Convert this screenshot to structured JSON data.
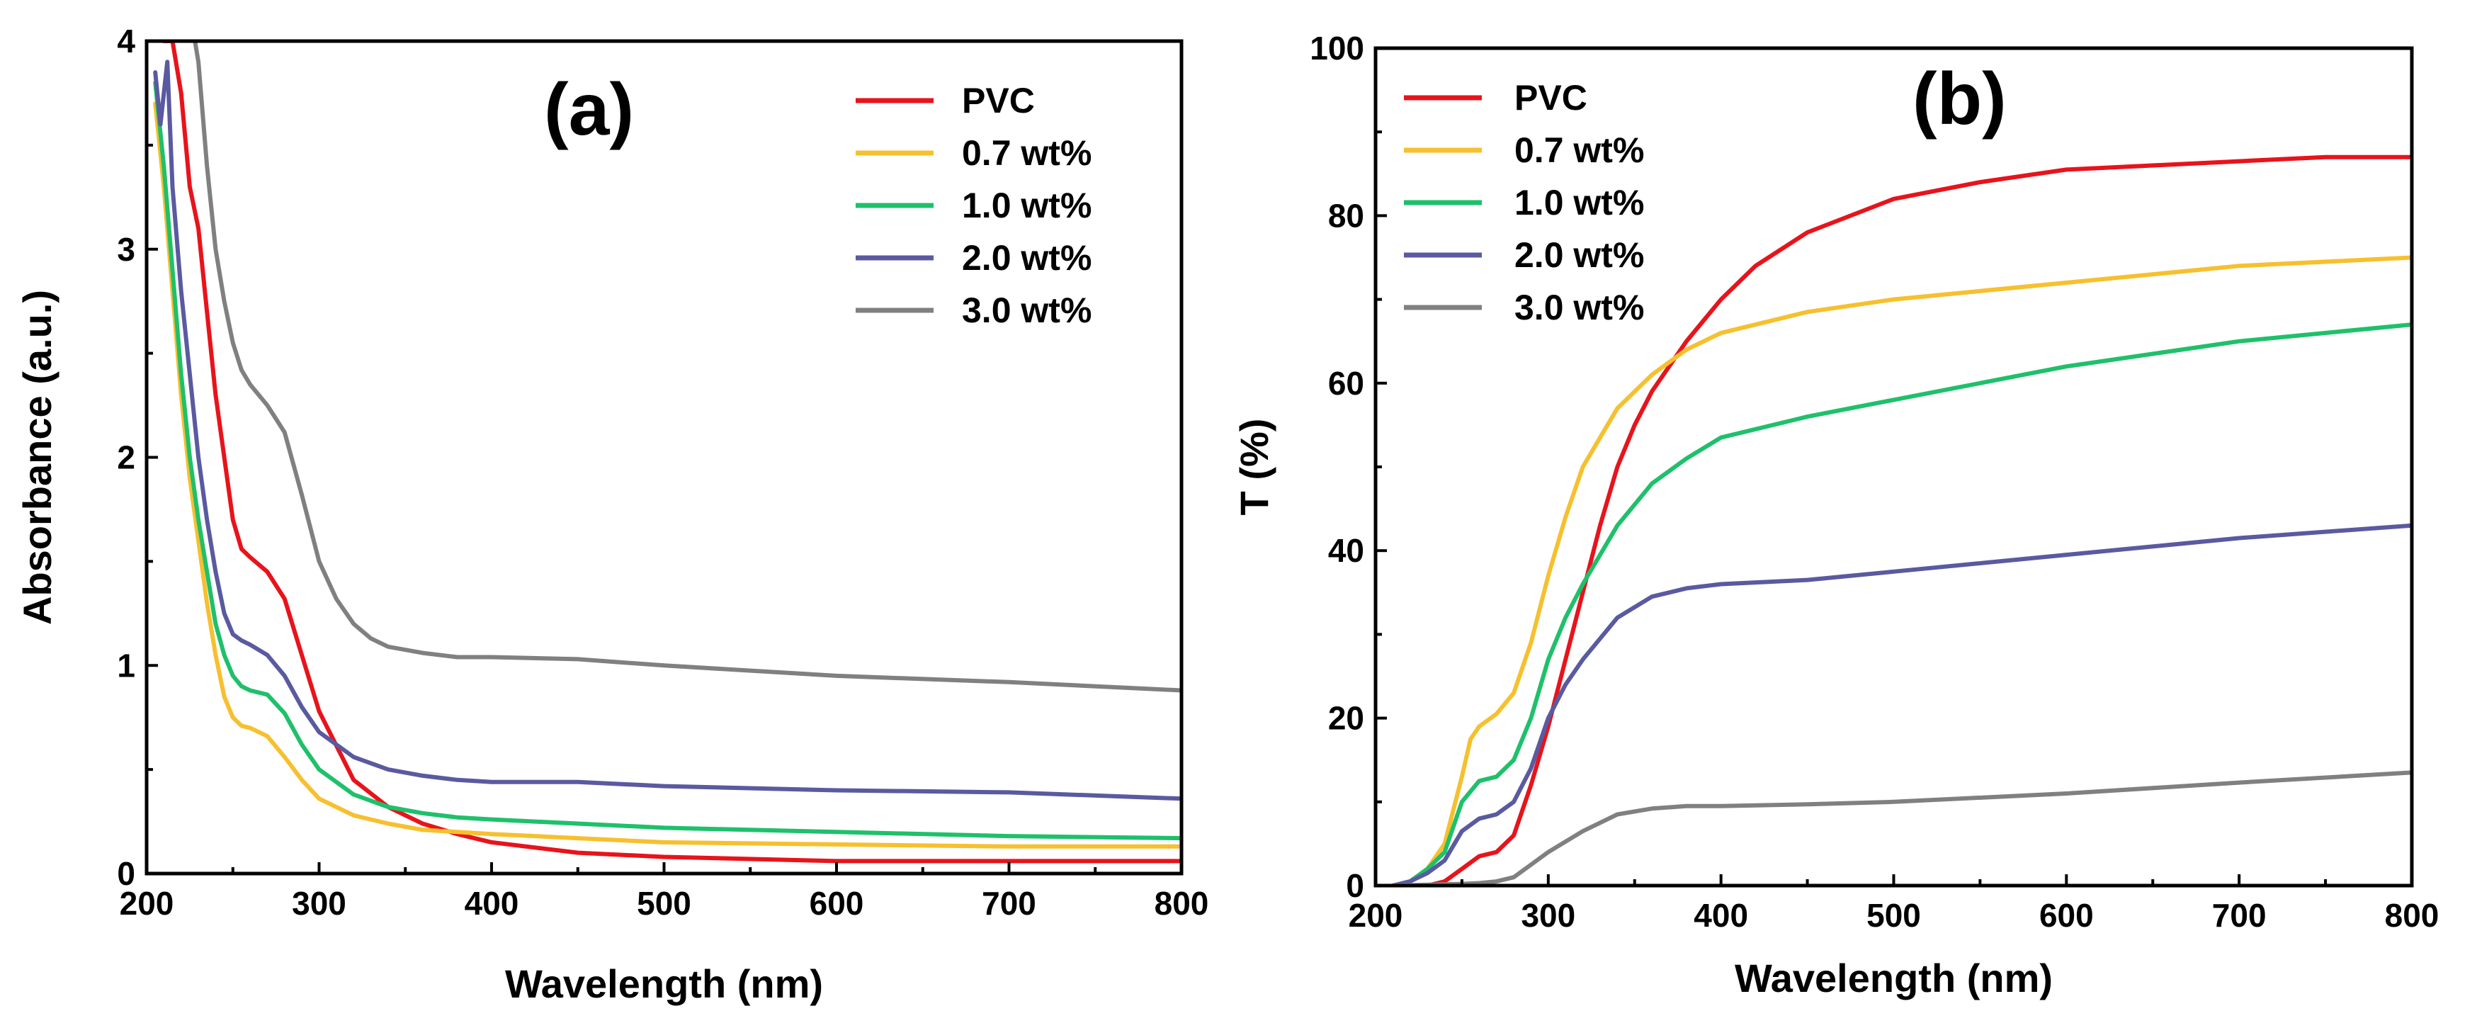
{
  "chart_data": [
    {
      "type": "line",
      "panel_label": "(a)",
      "title": "",
      "xlabel": "Wavelength (nm)",
      "ylabel": "Absorbance (a.u.)",
      "xlim": [
        200,
        800
      ],
      "ylim": [
        0,
        4
      ],
      "xticks": [
        "200",
        "300",
        "400",
        "500",
        "600",
        "700",
        "800"
      ],
      "yticks": [
        "0",
        "1",
        "2",
        "3",
        "4"
      ],
      "legend_position": "top-right",
      "series": [
        {
          "name": "PVC",
          "color": "#e8131b",
          "x": [
            210,
            215,
            220,
            225,
            230,
            235,
            240,
            245,
            250,
            255,
            260,
            270,
            280,
            290,
            300,
            320,
            340,
            360,
            380,
            400,
            450,
            500,
            600,
            700,
            800
          ],
          "y": [
            4.0,
            4.0,
            3.75,
            3.3,
            3.1,
            2.7,
            2.3,
            2.0,
            1.7,
            1.56,
            1.52,
            1.45,
            1.32,
            1.05,
            0.78,
            0.45,
            0.32,
            0.24,
            0.19,
            0.15,
            0.1,
            0.08,
            0.06,
            0.06,
            0.06
          ]
        },
        {
          "name": "0.7 wt%",
          "color": "#f6c02e",
          "x": [
            205,
            210,
            215,
            220,
            225,
            230,
            235,
            240,
            245,
            250,
            255,
            260,
            270,
            280,
            290,
            300,
            320,
            340,
            360,
            380,
            400,
            450,
            500,
            600,
            700,
            800
          ],
          "y": [
            3.7,
            3.3,
            2.8,
            2.3,
            1.9,
            1.6,
            1.3,
            1.05,
            0.85,
            0.75,
            0.71,
            0.7,
            0.66,
            0.56,
            0.45,
            0.36,
            0.28,
            0.24,
            0.21,
            0.2,
            0.19,
            0.17,
            0.15,
            0.14,
            0.13,
            0.13
          ]
        },
        {
          "name": "1.0 wt%",
          "color": "#1fc06b",
          "x": [
            205,
            210,
            215,
            220,
            225,
            230,
            235,
            240,
            245,
            250,
            255,
            260,
            270,
            280,
            290,
            300,
            320,
            340,
            360,
            380,
            400,
            450,
            500,
            600,
            700,
            800
          ],
          "y": [
            3.8,
            3.4,
            2.9,
            2.4,
            2.0,
            1.7,
            1.45,
            1.2,
            1.05,
            0.95,
            0.9,
            0.88,
            0.86,
            0.77,
            0.62,
            0.5,
            0.38,
            0.32,
            0.29,
            0.27,
            0.26,
            0.24,
            0.22,
            0.2,
            0.18,
            0.17
          ]
        },
        {
          "name": "2.0 wt%",
          "color": "#5a5aa0",
          "x": [
            205,
            208,
            212,
            215,
            220,
            225,
            230,
            235,
            240,
            245,
            250,
            255,
            260,
            270,
            280,
            290,
            300,
            320,
            340,
            360,
            380,
            400,
            450,
            500,
            600,
            700,
            800
          ],
          "y": [
            3.85,
            3.6,
            3.9,
            3.3,
            2.8,
            2.4,
            2.0,
            1.7,
            1.45,
            1.25,
            1.15,
            1.12,
            1.1,
            1.05,
            0.95,
            0.8,
            0.68,
            0.56,
            0.5,
            0.47,
            0.45,
            0.44,
            0.44,
            0.42,
            0.4,
            0.39,
            0.36
          ]
        },
        {
          "name": "3.0 wt%",
          "color": "#808080",
          "x": [
            228,
            230,
            235,
            240,
            245,
            250,
            255,
            260,
            270,
            280,
            290,
            300,
            310,
            320,
            330,
            340,
            360,
            380,
            400,
            450,
            500,
            600,
            700,
            800
          ],
          "y": [
            4.0,
            3.9,
            3.4,
            3.0,
            2.75,
            2.55,
            2.42,
            2.35,
            2.25,
            2.12,
            1.82,
            1.5,
            1.32,
            1.2,
            1.13,
            1.09,
            1.06,
            1.04,
            1.04,
            1.03,
            1.0,
            0.95,
            0.92,
            0.88
          ]
        }
      ]
    },
    {
      "type": "line",
      "panel_label": "(b)",
      "title": "",
      "xlabel": "Wavelength (nm)",
      "ylabel": "T (%)",
      "xlim": [
        200,
        800
      ],
      "ylim": [
        0,
        100
      ],
      "xticks": [
        "200",
        "300",
        "400",
        "500",
        "600",
        "700",
        "800"
      ],
      "yticks": [
        "0",
        "20",
        "40",
        "60",
        "80",
        "100"
      ],
      "legend_position": "top-left",
      "series": [
        {
          "name": "PVC",
          "color": "#e8131b",
          "x": [
            210,
            220,
            230,
            240,
            250,
            260,
            270,
            280,
            290,
            300,
            310,
            320,
            330,
            340,
            350,
            360,
            380,
            400,
            420,
            450,
            500,
            550,
            600,
            650,
            700,
            750,
            800
          ],
          "y": [
            0,
            0,
            0,
            0.5,
            2,
            3.5,
            4,
            6,
            12,
            19,
            27,
            35,
            43,
            50,
            55,
            59,
            65,
            70,
            74,
            78,
            82,
            84,
            85.5,
            86,
            86.5,
            87,
            87
          ]
        },
        {
          "name": "0.7 wt%",
          "color": "#f6c02e",
          "x": [
            210,
            220,
            230,
            240,
            250,
            255,
            260,
            270,
            280,
            290,
            300,
            310,
            320,
            340,
            360,
            380,
            400,
            450,
            500,
            600,
            700,
            800
          ],
          "y": [
            0,
            0.5,
            2,
            5,
            13,
            17.5,
            19,
            20.5,
            23,
            29,
            37,
            44,
            50,
            57,
            61,
            64,
            66,
            68.5,
            70,
            72,
            74,
            75
          ]
        },
        {
          "name": "1.0 wt%",
          "color": "#1fc06b",
          "x": [
            210,
            220,
            230,
            240,
            250,
            260,
            270,
            280,
            290,
            300,
            310,
            320,
            340,
            360,
            380,
            400,
            450,
            500,
            600,
            700,
            800
          ],
          "y": [
            0,
            0.5,
            2,
            4,
            10,
            12.5,
            13,
            15,
            20,
            27,
            32,
            36,
            43,
            48,
            51,
            53.5,
            56,
            58,
            62,
            65,
            67
          ]
        },
        {
          "name": "2.0 wt%",
          "color": "#5a5aa0",
          "x": [
            210,
            220,
            230,
            240,
            250,
            260,
            270,
            280,
            290,
            300,
            310,
            320,
            340,
            360,
            380,
            400,
            450,
            500,
            600,
            700,
            800
          ],
          "y": [
            0,
            0.5,
            1.5,
            3,
            6.5,
            8,
            8.5,
            10,
            14,
            20,
            24,
            27,
            32,
            34.5,
            35.5,
            36,
            36.5,
            37.5,
            39.5,
            41.5,
            43
          ]
        },
        {
          "name": "3.0 wt%",
          "color": "#808080",
          "x": [
            210,
            250,
            260,
            270,
            280,
            290,
            300,
            320,
            340,
            360,
            380,
            400,
            450,
            500,
            600,
            700,
            800
          ],
          "y": [
            0,
            0.2,
            0.3,
            0.5,
            1,
            2.5,
            4,
            6.5,
            8.5,
            9.2,
            9.5,
            9.5,
            9.7,
            10,
            11,
            12.3,
            13.5
          ]
        }
      ]
    }
  ]
}
